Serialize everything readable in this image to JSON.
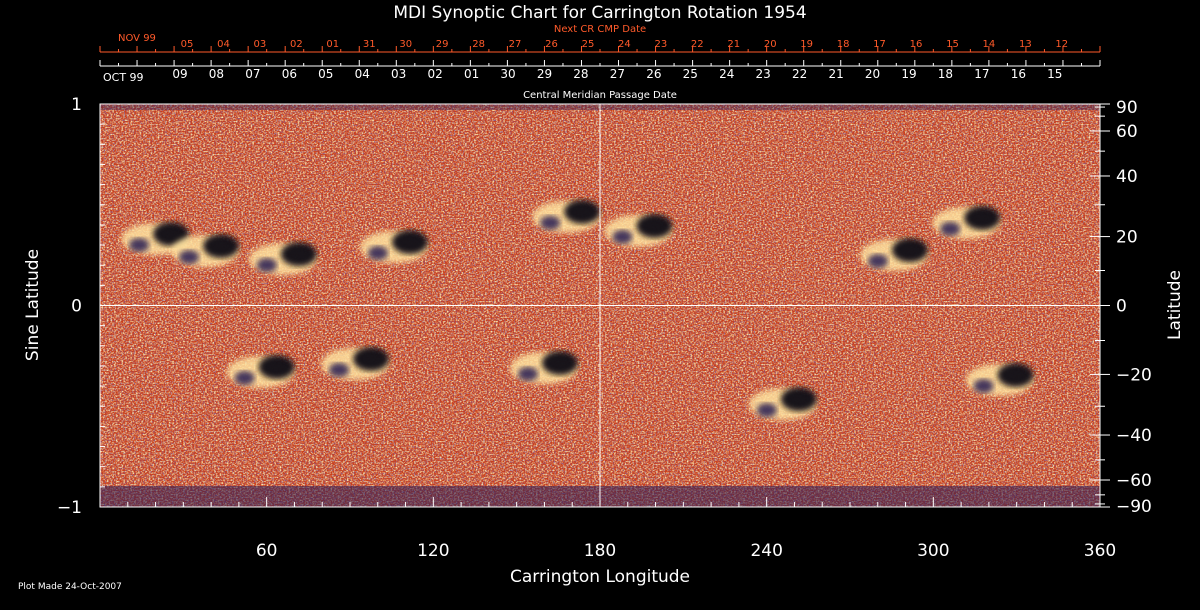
{
  "chart_data": {
    "type": "heatmap",
    "title": "MDI Synoptic Chart for Carrington Rotation 1954",
    "xlabel": "Carrington Longitude",
    "ylabel_left": "Sine Latitude",
    "ylabel_right": "Latitude",
    "xlim": [
      0,
      360
    ],
    "ylim": [
      -1,
      1
    ],
    "x_ticks": [
      60,
      120,
      180,
      240,
      300,
      360
    ],
    "x_minor_step": 10,
    "y_left_ticks": [
      {
        "value": 1,
        "label": "1"
      },
      {
        "value": 0,
        "label": "0"
      },
      {
        "value": -1,
        "label": "−1"
      }
    ],
    "y_right_ticks": [
      {
        "deg": 90,
        "label": "90"
      },
      {
        "deg": 60,
        "label": "60"
      },
      {
        "deg": 40,
        "label": "40"
      },
      {
        "deg": 20,
        "label": "20"
      },
      {
        "deg": 0,
        "label": "0"
      },
      {
        "deg": -20,
        "label": "−20"
      },
      {
        "deg": -40,
        "label": "−40"
      },
      {
        "deg": -60,
        "label": "−60"
      },
      {
        "deg": -90,
        "label": "−90"
      }
    ],
    "crosshair": {
      "longitude": 180,
      "sine_latitude": 0
    },
    "active_regions": [
      {
        "lon": 22,
        "sinlat": 0.34,
        "polarity": "mixed"
      },
      {
        "lon": 40,
        "sinlat": 0.28,
        "polarity": "mixed"
      },
      {
        "lon": 68,
        "sinlat": 0.24,
        "polarity": "mixed"
      },
      {
        "lon": 108,
        "sinlat": 0.3,
        "polarity": "mixed"
      },
      {
        "lon": 170,
        "sinlat": 0.45,
        "polarity": "mixed"
      },
      {
        "lon": 196,
        "sinlat": 0.38,
        "polarity": "mixed"
      },
      {
        "lon": 288,
        "sinlat": 0.26,
        "polarity": "mixed"
      },
      {
        "lon": 314,
        "sinlat": 0.42,
        "polarity": "mixed"
      },
      {
        "lon": 60,
        "sinlat": -0.32,
        "polarity": "mixed"
      },
      {
        "lon": 94,
        "sinlat": -0.28,
        "polarity": "mixed"
      },
      {
        "lon": 162,
        "sinlat": -0.3,
        "polarity": "mixed"
      },
      {
        "lon": 248,
        "sinlat": -0.48,
        "polarity": "mixed"
      },
      {
        "lon": 326,
        "sinlat": -0.36,
        "polarity": "mixed"
      }
    ],
    "colormap": [
      "#05030d",
      "#271a52",
      "#3f1f64",
      "#a52a14",
      "#d8421a",
      "#f66a22",
      "#ff9d3d",
      "#ffe3a0"
    ]
  },
  "top_axes": {
    "next_axis_title": "Next CR CMP Date",
    "next_month_label": "NOV 99",
    "next_dates": [
      "05",
      "04",
      "03",
      "02",
      "01",
      "31",
      "30",
      "29",
      "28",
      "27",
      "26",
      "25",
      "24",
      "23",
      "22",
      "21",
      "20",
      "19",
      "18",
      "17",
      "16",
      "15",
      "14",
      "13",
      "12"
    ],
    "cmp_axis_title": "Central Meridian Passage Date",
    "cmp_month_label": "OCT 99",
    "cmp_dates": [
      "09",
      "08",
      "07",
      "06",
      "05",
      "04",
      "03",
      "02",
      "01",
      "30",
      "29",
      "28",
      "27",
      "26",
      "25",
      "24",
      "23",
      "22",
      "21",
      "20",
      "19",
      "18",
      "17",
      "16",
      "15"
    ]
  },
  "footer": {
    "plot_made": "Plot Made 24-Oct-2007"
  }
}
